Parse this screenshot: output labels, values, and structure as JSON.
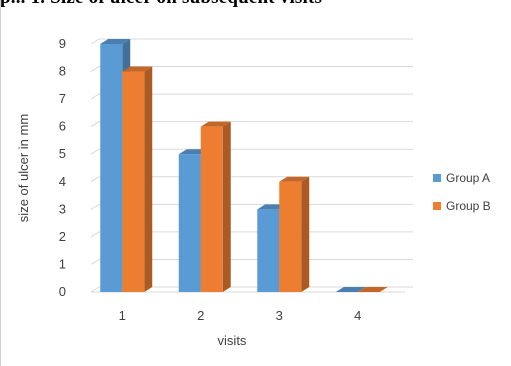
{
  "heading_fragment": "p... 1. Size of ulcer on subsequent visits",
  "chart_data": {
    "type": "bar",
    "title": "",
    "xlabel": "visits",
    "ylabel": "size of ulcer in mm",
    "categories": [
      "1",
      "2",
      "3",
      "4"
    ],
    "series": [
      {
        "name": "Group A",
        "values": [
          9,
          5,
          3,
          0
        ],
        "color": "#5B9BD5"
      },
      {
        "name": "Group B",
        "values": [
          8,
          6,
          4,
          0
        ],
        "color": "#ED7D31"
      }
    ],
    "ylim": [
      0,
      9
    ],
    "yticks": [
      0,
      1,
      2,
      3,
      4,
      5,
      6,
      7,
      8,
      9
    ],
    "grid": true,
    "legend_position": "right",
    "style": "3d-column"
  }
}
